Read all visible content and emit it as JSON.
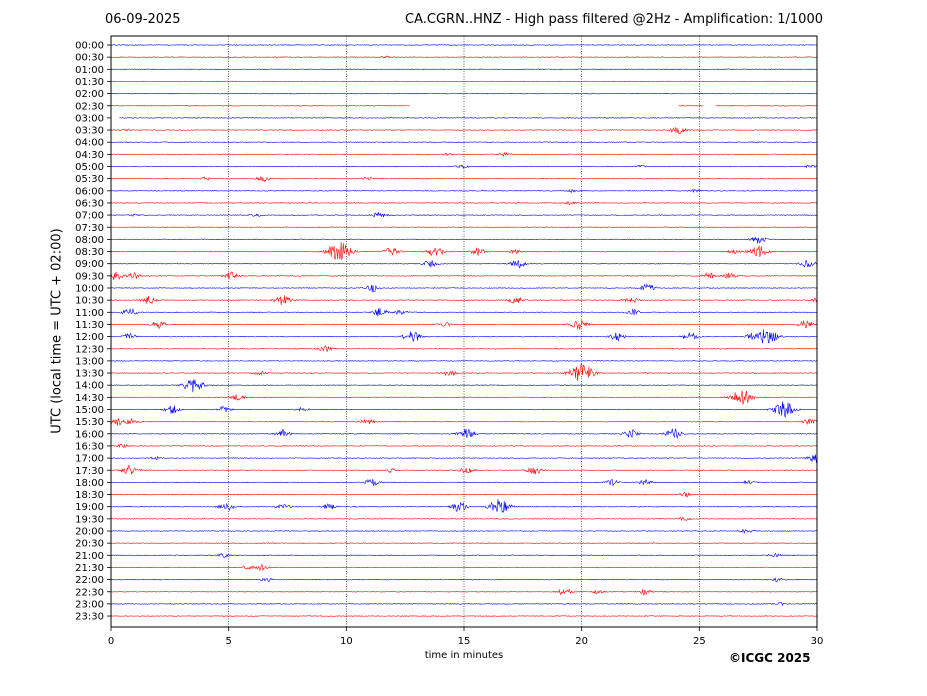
{
  "header": {
    "date": "06-09-2025",
    "title": "CA.CGRN..HNZ - High pass filtered @2Hz - Amplification: 1/1000"
  },
  "copyright": "©ICGC 2025",
  "chart_data": {
    "type": "line",
    "title": "CA.CGRN..HNZ - High pass filtered @2Hz - Amplification: 1/1000",
    "xlabel": "time in minutes",
    "ylabel": "UTC (local time = UTC + 02:00)",
    "xlim": [
      0,
      30
    ],
    "xticks": [
      0,
      5,
      10,
      15,
      20,
      25,
      30
    ],
    "grid": "vertical dotted at 5-minute ticks",
    "colors": {
      "blue": "#0000ff",
      "red": "#ff0000"
    },
    "series_color_pattern": [
      "blue",
      "red"
    ],
    "rows": [
      "00:00",
      "00:30",
      "01:00",
      "01:30",
      "02:00",
      "02:30",
      "03:00",
      "03:30",
      "04:00",
      "04:30",
      "05:00",
      "05:30",
      "06:00",
      "06:30",
      "07:00",
      "07:30",
      "08:00",
      "08:30",
      "09:00",
      "09:30",
      "10:00",
      "10:30",
      "11:00",
      "11:30",
      "12:00",
      "12:30",
      "13:00",
      "13:30",
      "14:00",
      "14:30",
      "15:00",
      "15:30",
      "16:00",
      "16:30",
      "17:00",
      "17:30",
      "18:00",
      "18:30",
      "19:00",
      "19:30",
      "20:00",
      "20:30",
      "21:00",
      "21:30",
      "22:00",
      "22:30",
      "23:00",
      "23:30"
    ],
    "gaps": [
      {
        "row": "02:30",
        "x": [
          12.7,
          24.1
        ]
      },
      {
        "row": "02:30",
        "x": [
          25.2,
          25.7
        ]
      },
      {
        "row": "03:00",
        "x": [
          0,
          0.35
        ]
      }
    ],
    "events": [
      {
        "row": "00:30",
        "x": 11.7,
        "amp": 1.0
      },
      {
        "row": "03:30",
        "x": 24.1,
        "amp": 4.0
      },
      {
        "row": "03:30",
        "x": 0.7,
        "amp": 1.0
      },
      {
        "row": "04:30",
        "x": 16.7,
        "amp": 2.0
      },
      {
        "row": "04:30",
        "x": 14.3,
        "amp": 1.0
      },
      {
        "row": "05:00",
        "x": 14.9,
        "amp": 1.5
      },
      {
        "row": "05:00",
        "x": 29.7,
        "amp": 1.5
      },
      {
        "row": "05:00",
        "x": 22.5,
        "amp": 1.0
      },
      {
        "row": "05:30",
        "x": 6.5,
        "amp": 3.0
      },
      {
        "row": "05:30",
        "x": 4.0,
        "amp": 1.5
      },
      {
        "row": "05:30",
        "x": 10.9,
        "amp": 1.5
      },
      {
        "row": "06:00",
        "x": 19.6,
        "amp": 1.5
      },
      {
        "row": "06:00",
        "x": 24.8,
        "amp": 1.5
      },
      {
        "row": "06:30",
        "x": 19.5,
        "amp": 1.5
      },
      {
        "row": "07:00",
        "x": 11.4,
        "amp": 3.0
      },
      {
        "row": "07:00",
        "x": 6.2,
        "amp": 1.5
      },
      {
        "row": "07:00",
        "x": 1.0,
        "amp": 1.0
      },
      {
        "row": "08:00",
        "x": 27.5,
        "amp": 4.0
      },
      {
        "row": "08:30",
        "x": 9.7,
        "amp": 10.0
      },
      {
        "row": "08:30",
        "x": 11.9,
        "amp": 4.0
      },
      {
        "row": "08:30",
        "x": 13.8,
        "amp": 5.0
      },
      {
        "row": "08:30",
        "x": 15.6,
        "amp": 4.0
      },
      {
        "row": "08:30",
        "x": 17.2,
        "amp": 2.0
      },
      {
        "row": "08:30",
        "x": 27.5,
        "amp": 6.0
      },
      {
        "row": "08:30",
        "x": 26.5,
        "amp": 2.0
      },
      {
        "row": "09:00",
        "x": 13.6,
        "amp": 4.0
      },
      {
        "row": "09:00",
        "x": 17.3,
        "amp": 4.0
      },
      {
        "row": "09:00",
        "x": 29.6,
        "amp": 4.0
      },
      {
        "row": "09:30",
        "x": 0.2,
        "amp": 4.0
      },
      {
        "row": "09:30",
        "x": 1.0,
        "amp": 3.0
      },
      {
        "row": "09:30",
        "x": 5.1,
        "amp": 4.0
      },
      {
        "row": "09:30",
        "x": 25.4,
        "amp": 3.0
      },
      {
        "row": "09:30",
        "x": 26.3,
        "amp": 3.0
      },
      {
        "row": "10:00",
        "x": 11.1,
        "amp": 4.0
      },
      {
        "row": "10:00",
        "x": 22.8,
        "amp": 4.0
      },
      {
        "row": "10:30",
        "x": 1.6,
        "amp": 4.0
      },
      {
        "row": "10:30",
        "x": 7.3,
        "amp": 5.0
      },
      {
        "row": "10:30",
        "x": 17.2,
        "amp": 4.0
      },
      {
        "row": "10:30",
        "x": 22.1,
        "amp": 3.0
      },
      {
        "row": "10:30",
        "x": 30.0,
        "amp": 2.0
      },
      {
        "row": "11:00",
        "x": 0.8,
        "amp": 4.0
      },
      {
        "row": "11:00",
        "x": 11.4,
        "amp": 4.0
      },
      {
        "row": "11:00",
        "x": 12.3,
        "amp": 3.0
      },
      {
        "row": "11:00",
        "x": 22.2,
        "amp": 3.0
      },
      {
        "row": "11:30",
        "x": 2.0,
        "amp": 4.0
      },
      {
        "row": "11:30",
        "x": 19.9,
        "amp": 5.0
      },
      {
        "row": "11:30",
        "x": 29.5,
        "amp": 4.0
      },
      {
        "row": "11:30",
        "x": 14.2,
        "amp": 2.0
      },
      {
        "row": "12:00",
        "x": 0.8,
        "amp": 3.0
      },
      {
        "row": "12:00",
        "x": 12.8,
        "amp": 6.0
      },
      {
        "row": "12:00",
        "x": 21.5,
        "amp": 4.0
      },
      {
        "row": "12:00",
        "x": 24.6,
        "amp": 4.0
      },
      {
        "row": "12:00",
        "x": 27.9,
        "amp": 8.0
      },
      {
        "row": "12:00",
        "x": 27.3,
        "amp": 4.0
      },
      {
        "row": "12:30",
        "x": 9.1,
        "amp": 3.0
      },
      {
        "row": "13:30",
        "x": 20.0,
        "amp": 10.0
      },
      {
        "row": "13:30",
        "x": 6.3,
        "amp": 2.0
      },
      {
        "row": "13:30",
        "x": 14.4,
        "amp": 3.0
      },
      {
        "row": "14:00",
        "x": 3.5,
        "amp": 8.0
      },
      {
        "row": "14:30",
        "x": 5.4,
        "amp": 3.0
      },
      {
        "row": "14:30",
        "x": 26.8,
        "amp": 8.0
      },
      {
        "row": "15:00",
        "x": 2.6,
        "amp": 4.0
      },
      {
        "row": "15:00",
        "x": 4.8,
        "amp": 3.0
      },
      {
        "row": "15:00",
        "x": 28.6,
        "amp": 8.0
      },
      {
        "row": "15:00",
        "x": 8.1,
        "amp": 2.0
      },
      {
        "row": "15:30",
        "x": 0.3,
        "amp": 4.0
      },
      {
        "row": "15:30",
        "x": 0.9,
        "amp": 3.0
      },
      {
        "row": "15:30",
        "x": 10.9,
        "amp": 3.0
      },
      {
        "row": "15:30",
        "x": 29.7,
        "amp": 3.0
      },
      {
        "row": "16:00",
        "x": 7.3,
        "amp": 4.0
      },
      {
        "row": "16:00",
        "x": 15.1,
        "amp": 5.0
      },
      {
        "row": "16:00",
        "x": 22.1,
        "amp": 4.0
      },
      {
        "row": "16:00",
        "x": 23.9,
        "amp": 5.0
      },
      {
        "row": "16:30",
        "x": 0.5,
        "amp": 2.0
      },
      {
        "row": "17:00",
        "x": 29.9,
        "amp": 4.0
      },
      {
        "row": "17:00",
        "x": 1.9,
        "amp": 1.5
      },
      {
        "row": "17:30",
        "x": 0.8,
        "amp": 5.0
      },
      {
        "row": "17:30",
        "x": 15.1,
        "amp": 3.0
      },
      {
        "row": "17:30",
        "x": 18.0,
        "amp": 4.0
      },
      {
        "row": "17:30",
        "x": 11.9,
        "amp": 2.0
      },
      {
        "row": "18:00",
        "x": 11.1,
        "amp": 4.0
      },
      {
        "row": "18:00",
        "x": 21.3,
        "amp": 3.0
      },
      {
        "row": "18:00",
        "x": 22.7,
        "amp": 3.0
      },
      {
        "row": "18:00",
        "x": 27.1,
        "amp": 2.0
      },
      {
        "row": "18:30",
        "x": 24.4,
        "amp": 2.0
      },
      {
        "row": "19:00",
        "x": 4.9,
        "amp": 4.0
      },
      {
        "row": "19:00",
        "x": 14.8,
        "amp": 5.0
      },
      {
        "row": "19:00",
        "x": 16.5,
        "amp": 8.0
      },
      {
        "row": "19:00",
        "x": 7.3,
        "amp": 3.0
      },
      {
        "row": "19:00",
        "x": 9.3,
        "amp": 3.0
      },
      {
        "row": "19:30",
        "x": 24.4,
        "amp": 2.0
      },
      {
        "row": "20:00",
        "x": 27.0,
        "amp": 2.0
      },
      {
        "row": "21:00",
        "x": 4.8,
        "amp": 2.0
      },
      {
        "row": "21:00",
        "x": 28.2,
        "amp": 2.0
      },
      {
        "row": "21:30",
        "x": 6.4,
        "amp": 3.0
      },
      {
        "row": "21:30",
        "x": 5.8,
        "amp": 2.0
      },
      {
        "row": "22:00",
        "x": 6.6,
        "amp": 2.0
      },
      {
        "row": "22:00",
        "x": 28.3,
        "amp": 2.0
      },
      {
        "row": "22:30",
        "x": 19.3,
        "amp": 4.0
      },
      {
        "row": "22:30",
        "x": 22.7,
        "amp": 3.0
      },
      {
        "row": "22:30",
        "x": 20.7,
        "amp": 2.0
      },
      {
        "row": "23:00",
        "x": 28.4,
        "amp": 1.5
      }
    ]
  }
}
